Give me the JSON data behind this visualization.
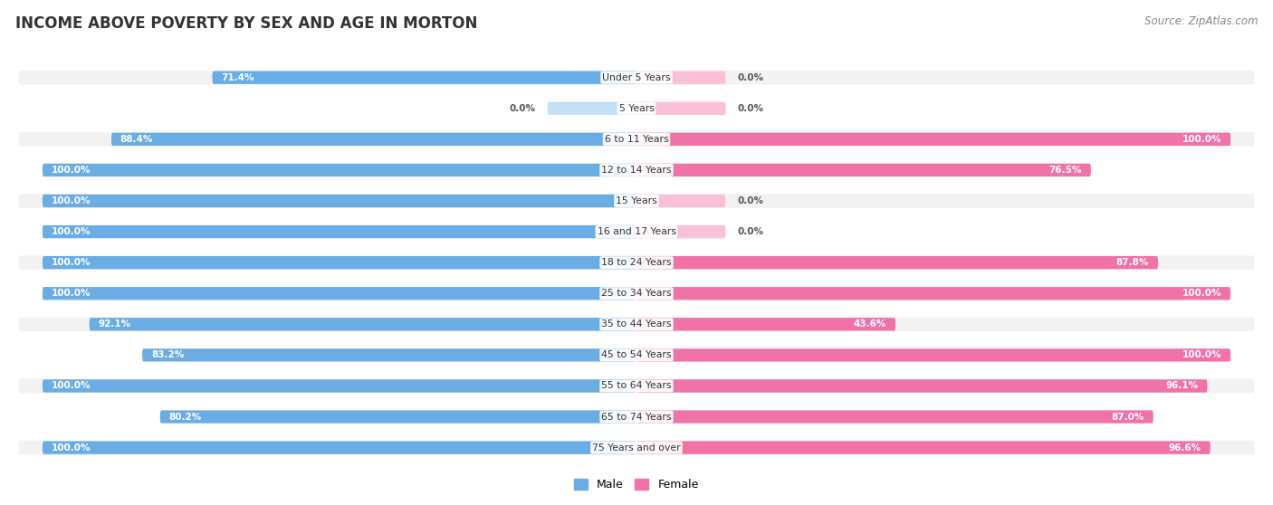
{
  "title": "INCOME ABOVE POVERTY BY SEX AND AGE IN MORTON",
  "source": "Source: ZipAtlas.com",
  "categories": [
    "Under 5 Years",
    "5 Years",
    "6 to 11 Years",
    "12 to 14 Years",
    "15 Years",
    "16 and 17 Years",
    "18 to 24 Years",
    "25 to 34 Years",
    "35 to 44 Years",
    "45 to 54 Years",
    "55 to 64 Years",
    "65 to 74 Years",
    "75 Years and over"
  ],
  "male": [
    71.4,
    0.0,
    88.4,
    100.0,
    100.0,
    100.0,
    100.0,
    100.0,
    92.1,
    83.2,
    100.0,
    80.2,
    100.0
  ],
  "female": [
    0.0,
    0.0,
    100.0,
    76.5,
    0.0,
    0.0,
    87.8,
    100.0,
    43.6,
    100.0,
    96.1,
    87.0,
    96.6
  ],
  "male_color": "#6aade4",
  "female_color": "#f072a9",
  "male_light_color": "#c5dff5",
  "female_light_color": "#f9c0d8",
  "row_color_odd": "#f2f2f2",
  "row_color_even": "#ffffff",
  "figsize": [
    14.06,
    5.58
  ],
  "dpi": 100
}
